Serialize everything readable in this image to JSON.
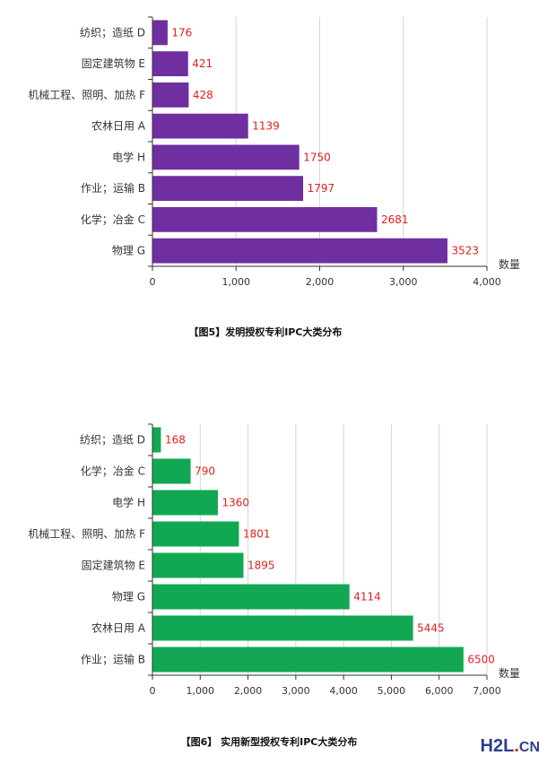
{
  "chart_data": [
    {
      "type": "bar",
      "orientation": "horizontal",
      "title": "【图5】发明授权专利IPC大类分布",
      "xlabel": "数量",
      "xlim": [
        0,
        4000
      ],
      "ticks": [
        "0",
        "1,000",
        "2,000",
        "3,000",
        "4,000"
      ],
      "tick_values": [
        0,
        1000,
        2000,
        3000,
        4000
      ],
      "categories": [
        "纺织；造纸 D",
        "固定建筑物 E",
        "机械工程、照明、加热 F",
        "农林日用 A",
        "电学 H",
        "作业；运输 B",
        "化学；冶金 C",
        "物理 G"
      ],
      "values": [
        176,
        421,
        428,
        1139,
        1750,
        1797,
        2681,
        3523
      ],
      "value_labels": [
        "176",
        "421",
        "428",
        "1139",
        "1750",
        "1797",
        "2681",
        "3523"
      ],
      "color": "#6f2fa0",
      "grid": true
    },
    {
      "type": "bar",
      "orientation": "horizontal",
      "title": "【图6】 实用新型授权专利IPC大类分布",
      "xlabel": "数量",
      "xlim": [
        0,
        7000
      ],
      "ticks": [
        "0",
        "1,000",
        "2,000",
        "3,000",
        "4,000",
        "5,000",
        "6,000",
        "7,000"
      ],
      "tick_values": [
        0,
        1000,
        2000,
        3000,
        4000,
        5000,
        6000,
        7000
      ],
      "categories": [
        "纺织；造纸 D",
        "化学；冶金 C",
        "电学 H",
        "机械工程、照明、加热 F",
        "固定建筑物 E",
        "物理 G",
        "农林日用 A",
        "作业；运输 B"
      ],
      "values": [
        168,
        790,
        1360,
        1801,
        1895,
        4114,
        5445,
        6500
      ],
      "value_labels": [
        "168",
        "790",
        "1360",
        "1801",
        "1895",
        "4114",
        "5445",
        "6500"
      ],
      "color": "#12a853",
      "grid": true
    }
  ],
  "watermark": {
    "brand": "H2L",
    "dot": ".",
    "suffix": "CN"
  }
}
